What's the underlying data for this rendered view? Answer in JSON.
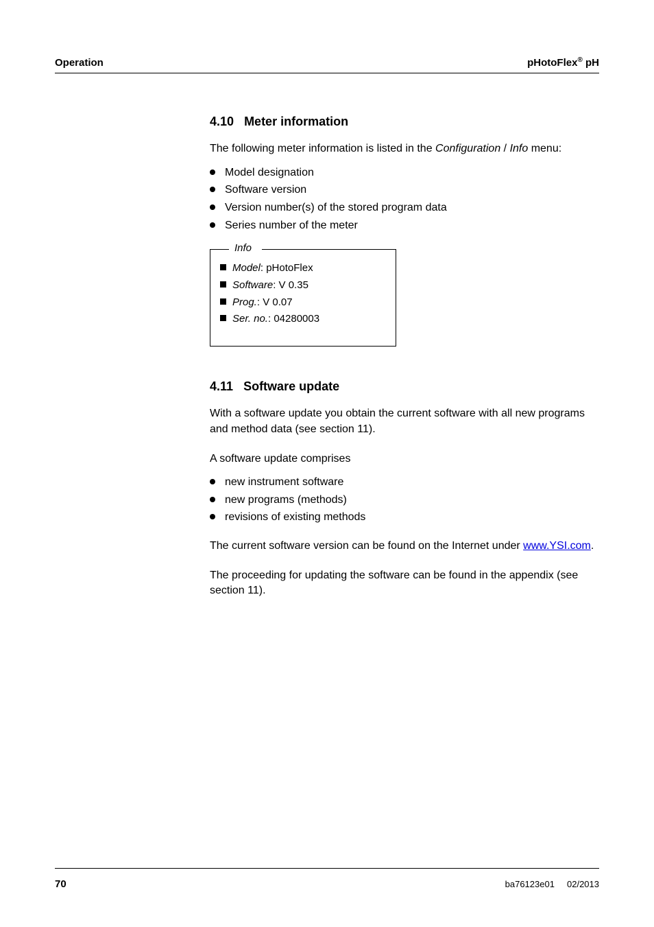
{
  "header": {
    "left": "Operation",
    "right_prefix": "pHotoFlex",
    "right_sup": "®",
    "right_suffix": " pH"
  },
  "section410": {
    "number": "4.10",
    "title": "Meter information",
    "intro_pre": "The following meter information is listed in the ",
    "intro_conf": "Configuration",
    "intro_sep": " / ",
    "intro_info": "Info",
    "intro_post": " menu:",
    "bullets": [
      "Model designation",
      "Software version",
      "Version number(s) of the stored program data",
      "Series number of the meter"
    ]
  },
  "infobox": {
    "label": "Info",
    "lines": [
      {
        "label": "Model",
        "sep": ": ",
        "value": "pHotoFlex"
      },
      {
        "label": "Software",
        "sep": ": ",
        "value": "V 0.35"
      },
      {
        "label": "Prog.",
        "sep": ":  ",
        "value": "V 0.07"
      },
      {
        "label": "Ser. no.",
        "sep": ": ",
        "value": "04280003"
      }
    ]
  },
  "section411": {
    "number": "4.11",
    "title": "Software update",
    "p1": "With a software update you obtain the current software with all new programs and method data (see section 11).",
    "p2": "A software update comprises",
    "bullets": [
      "new instrument software",
      "new programs (methods)",
      "revisions of existing methods"
    ],
    "p3_pre": "The current software version can be found on the Internet under ",
    "p3_link": "www.YSI.com",
    "p3_post": ".",
    "p4": "The proceeding for updating the software can be found in the appendix (see section 11)."
  },
  "footer": {
    "page": "70",
    "doc": "ba76123e01",
    "date": "02/2013"
  }
}
